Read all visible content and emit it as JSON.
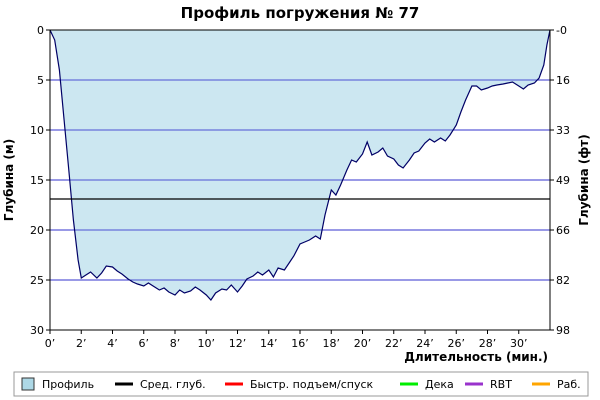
{
  "chart_data": {
    "type": "area",
    "title": "Профиль погружения № 77",
    "xlabel": "Длительность (мин.)",
    "ylabel_left": "Глубина (м)",
    "ylabel_right": "Глубина (фт)",
    "xlim": [
      0,
      32
    ],
    "ylim": [
      0,
      30
    ],
    "y_inverted": true,
    "x_ticks": [
      "0’",
      "2’",
      "4’",
      "6’",
      "8’",
      "10’",
      "12’",
      "14’",
      "16’",
      "18’",
      "20’",
      "22’",
      "24’",
      "26’",
      "28’",
      "30’"
    ],
    "x_tick_values": [
      0,
      2,
      4,
      6,
      8,
      10,
      12,
      14,
      16,
      18,
      20,
      22,
      24,
      26,
      28,
      30
    ],
    "y_left_ticks": [
      0,
      5,
      10,
      15,
      20,
      25,
      30
    ],
    "y_right_ticks": [
      "0",
      "16",
      "33",
      "49",
      "66",
      "82",
      "98"
    ],
    "grid": "horizontal",
    "average_depth": 16.9,
    "series": [
      {
        "name": "Профиль",
        "x": [
          0,
          0.3,
          0.6,
          0.9,
          1.2,
          1.5,
          1.8,
          2.0,
          2.3,
          2.6,
          3.0,
          3.3,
          3.6,
          4.0,
          4.3,
          4.6,
          5.0,
          5.3,
          5.6,
          6.0,
          6.3,
          6.6,
          7.0,
          7.3,
          7.6,
          8.0,
          8.3,
          8.6,
          9.0,
          9.3,
          9.6,
          10.0,
          10.3,
          10.6,
          11.0,
          11.3,
          11.6,
          12.0,
          12.3,
          12.6,
          13.0,
          13.3,
          13.6,
          14.0,
          14.3,
          14.6,
          15.0,
          15.3,
          15.6,
          16.0,
          16.3,
          16.6,
          17.0,
          17.3,
          17.6,
          18.0,
          18.3,
          18.6,
          19.0,
          19.3,
          19.6,
          20.0,
          20.3,
          20.6,
          21.0,
          21.3,
          21.6,
          22.0,
          22.3,
          22.6,
          23.0,
          23.3,
          23.6,
          24.0,
          24.3,
          24.6,
          25.0,
          25.3,
          25.6,
          26.0,
          26.3,
          26.6,
          27.0,
          27.3,
          27.6,
          28.0,
          28.3,
          28.6,
          29.0,
          29.3,
          29.6,
          30.0,
          30.3,
          30.6,
          31.0,
          31.3,
          31.6,
          31.8,
          32.0
        ],
        "values": [
          0,
          1,
          4,
          9,
          14,
          19,
          23,
          24.8,
          24.5,
          24.2,
          24.8,
          24.3,
          23.6,
          23.7,
          24.1,
          24.4,
          24.9,
          25.2,
          25.4,
          25.6,
          25.3,
          25.6,
          26.0,
          25.8,
          26.2,
          26.5,
          26.0,
          26.3,
          26.1,
          25.7,
          26.0,
          26.5,
          27.0,
          26.3,
          25.9,
          26.0,
          25.5,
          26.2,
          25.6,
          24.9,
          24.6,
          24.2,
          24.5,
          24.0,
          24.7,
          23.8,
          24.0,
          23.3,
          22.6,
          21.4,
          21.2,
          21.0,
          20.6,
          20.9,
          18.5,
          16.0,
          16.5,
          15.5,
          14.0,
          13.0,
          13.2,
          12.4,
          11.2,
          12.5,
          12.2,
          11.8,
          12.6,
          12.9,
          13.5,
          13.8,
          13.0,
          12.3,
          12.1,
          11.3,
          10.9,
          11.2,
          10.8,
          11.1,
          10.5,
          9.5,
          8.2,
          7.0,
          5.6,
          5.6,
          6.0,
          5.8,
          5.6,
          5.5,
          5.4,
          5.3,
          5.2,
          5.6,
          5.9,
          5.5,
          5.3,
          4.8,
          3.5,
          1.5,
          0
        ]
      }
    ],
    "legend": {
      "placement": "bottom",
      "items": [
        {
          "label": "Профиль",
          "color": "#add8e6",
          "kind": "box"
        },
        {
          "label": "Сред. глуб.",
          "color": "#000000",
          "kind": "line"
        },
        {
          "label": "Быстр. подъем/спуск",
          "color": "#ff0000",
          "kind": "line"
        },
        {
          "label": "Дека",
          "color": "#00ee00",
          "kind": "line"
        },
        {
          "label": "RBT",
          "color": "#9932cc",
          "kind": "line"
        },
        {
          "label": "Раб.",
          "color": "#ffa500",
          "kind": "line"
        }
      ]
    },
    "colors": {
      "area_fill": "#c3e3ef",
      "profile_line": "#000066",
      "grid_line": "#3333cc",
      "avg_line": "#000000"
    }
  }
}
